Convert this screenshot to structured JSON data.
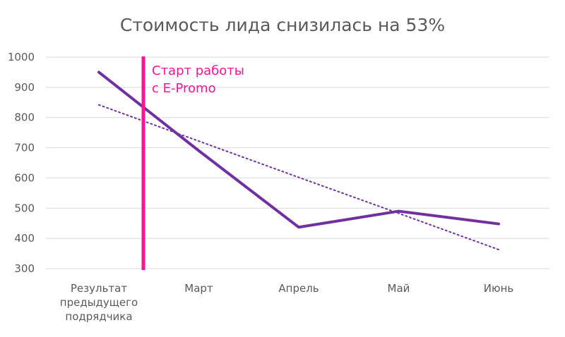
{
  "chart_data": {
    "type": "line",
    "title": "Стоимость лида снизилась на 53%",
    "categories": [
      [
        "Результат",
        "предыдущего",
        "подрядчика"
      ],
      [
        "Март"
      ],
      [
        "Апрель"
      ],
      [
        "Май"
      ],
      [
        "Июнь"
      ]
    ],
    "ylim": [
      300,
      1000
    ],
    "yticks": [
      1000,
      900,
      800,
      700,
      600,
      500,
      400,
      300
    ],
    "grid": true,
    "series": [
      {
        "values": [
          950,
          690,
          437,
          490,
          448
        ],
        "color": "#7030a0",
        "style": "solid"
      },
      {
        "values": [
          842,
          722,
          602,
          483,
          363
        ],
        "color": "#7030a0",
        "style": "dotted",
        "kind": "linear-trendline"
      }
    ],
    "annotation": {
      "lines": [
        "Старт работы",
        "с E-Promo"
      ],
      "color": "#ff1493",
      "position": "between-categories-1-2"
    }
  }
}
